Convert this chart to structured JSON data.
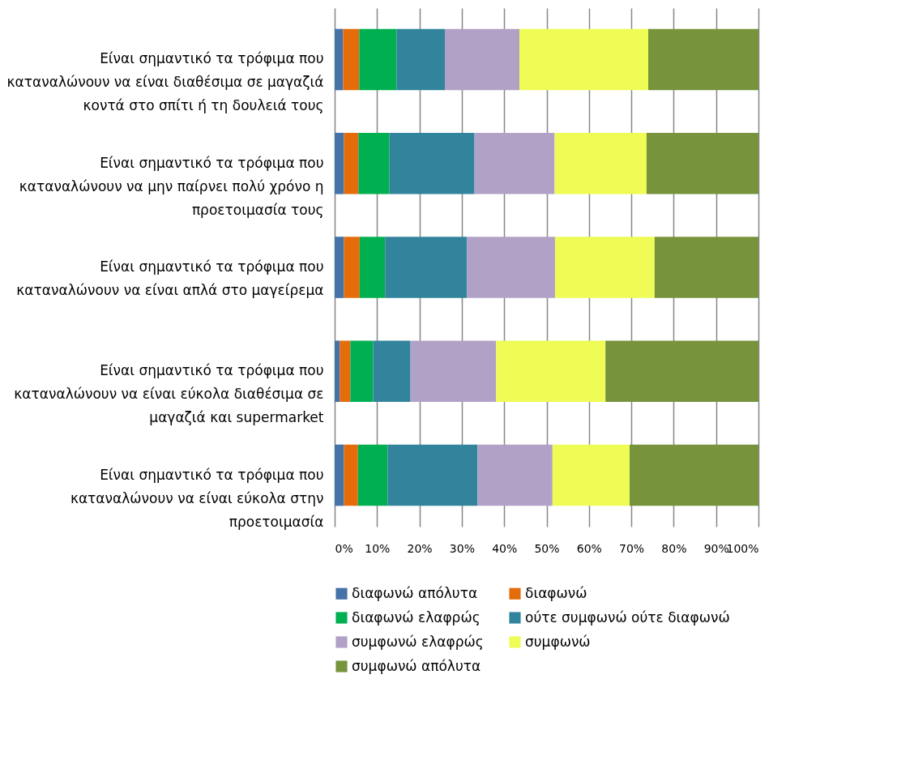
{
  "chart_data": {
    "type": "bar",
    "orientation": "horizontal",
    "stacked": true,
    "categories": [
      "Είναι σημαντικό τα τρόφιμα που καταναλώνουν να είναι διαθέσιμα σε μαγαζιά κοντά στο σπίτι ή τη δουλειά τους",
      "Είναι σημαντικό τα τρόφιμα που καταναλώνουν να μην παίρνει πολύ χρόνο η προετοιμασία τους",
      "Είναι σημαντικό τα τρόφιμα που καταναλώνουν να είναι απλά στο μαγείρεμα",
      "Είναι σημαντικό τα τρόφιμα που καταναλώνουν να είναι εύκολα διαθέσιμα σε μαγαζιά και supermarket",
      "Είναι σημαντικό τα τρόφιμα που καταναλώνουν να είναι εύκολα στην προετοιμασία"
    ],
    "series": [
      {
        "name": "διαφωνώ απόλυτα",
        "color": "#4572a7",
        "values": [
          2.0,
          2.2,
          2.2,
          1.2,
          2.2
        ]
      },
      {
        "name": "διαφωνώ",
        "color": "#e46c0a",
        "values": [
          3.8,
          3.4,
          3.7,
          2.5,
          3.3
        ]
      },
      {
        "name": "διαφωνώ ελαφρώς",
        "color": "#00b050",
        "values": [
          8.8,
          7.3,
          6.0,
          5.4,
          7.0
        ]
      },
      {
        "name": "ούτε συμφωνώ ούτε διαφωνώ",
        "color": "#31849b",
        "values": [
          11.4,
          20.1,
          19.3,
          8.8,
          21.2
        ]
      },
      {
        "name": "συμφωνώ ελαφρώς",
        "color": "#b2a1c7",
        "values": [
          17.6,
          18.9,
          20.8,
          20.2,
          17.7
        ]
      },
      {
        "name": "συμφωνώ",
        "color": "#eefc55",
        "values": [
          30.4,
          21.7,
          23.5,
          25.8,
          18.2
        ]
      },
      {
        "name": "συμφωνώ απόλυτα",
        "color": "#77933c",
        "values": [
          26.0,
          26.4,
          24.5,
          36.1,
          30.4
        ]
      }
    ],
    "xlim": [
      0,
      100
    ],
    "xticks": [
      {
        "value": 0,
        "label": "0%"
      },
      {
        "value": 10,
        "label": "10%"
      },
      {
        "value": 20,
        "label": "20%"
      },
      {
        "value": 30,
        "label": "30%"
      },
      {
        "value": 40,
        "label": "40%"
      },
      {
        "value": 50,
        "label": "50%"
      },
      {
        "value": 60,
        "label": "60%"
      },
      {
        "value": 70,
        "label": "70%"
      },
      {
        "value": 80,
        "label": "80%"
      },
      {
        "value": 90,
        "label": "90%"
      },
      {
        "value": 100,
        "label": "100%"
      }
    ],
    "grid": "x",
    "legend": "bottom"
  }
}
